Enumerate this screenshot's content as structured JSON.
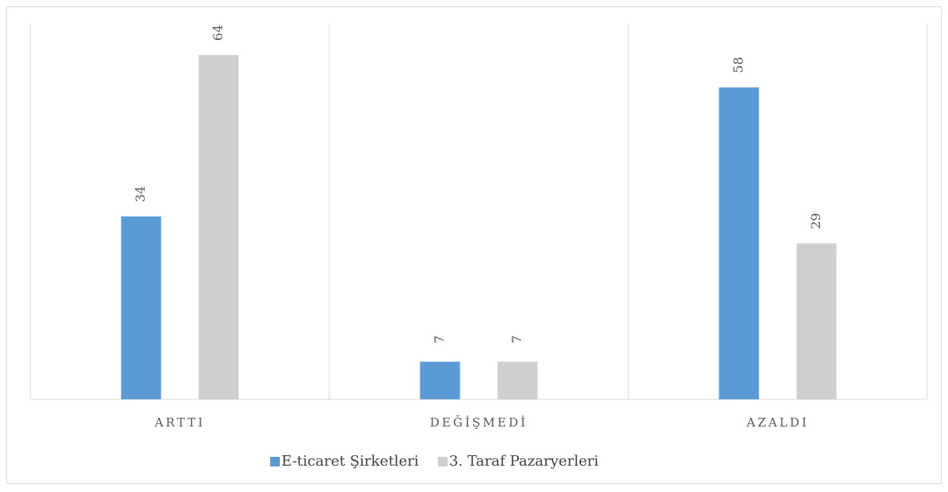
{
  "chart_data": {
    "type": "bar",
    "categories": [
      "ARTTI",
      "DEĞİŞMEDİ",
      "AZALDI"
    ],
    "series": [
      {
        "name": "E-ticaret Şirketleri",
        "color": "#5b9bd5",
        "values": [
          34,
          7,
          58
        ]
      },
      {
        "name": "3. Taraf Pazaryerleri",
        "color": "#d0cece",
        "values": [
          64,
          7,
          29
        ]
      }
    ],
    "legend": "bottom"
  }
}
